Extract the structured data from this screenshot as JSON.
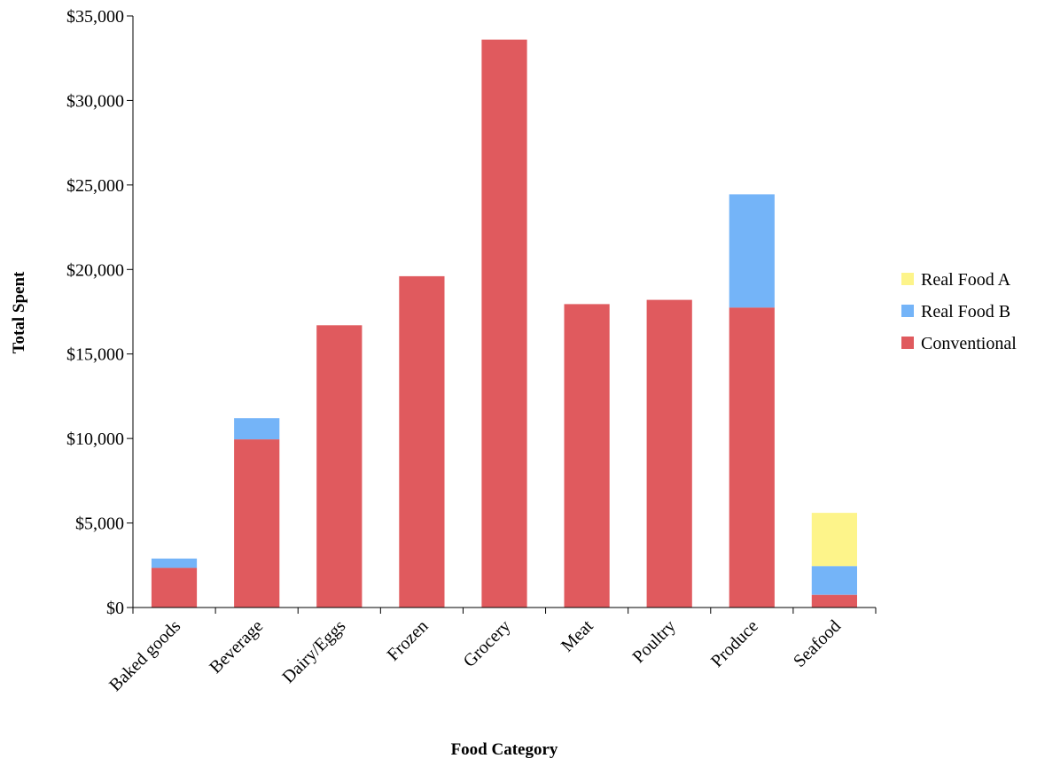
{
  "chart_data": {
    "type": "bar",
    "stacked": true,
    "categories": [
      "Baked goods",
      "Beverage",
      "Dairy/Eggs",
      "Frozen",
      "Grocery",
      "Meat",
      "Poultry",
      "Produce",
      "Seafood"
    ],
    "series": [
      {
        "name": "Conventional",
        "color": "#e05a5e",
        "values": [
          2350,
          9950,
          16700,
          19600,
          33600,
          17950,
          18200,
          17750,
          750
        ]
      },
      {
        "name": "Real Food B",
        "color": "#74b4f8",
        "values": [
          550,
          1250,
          0,
          0,
          0,
          0,
          0,
          6700,
          1700
        ]
      },
      {
        "name": "Real Food A",
        "color": "#fdf48a",
        "values": [
          0,
          0,
          0,
          0,
          0,
          0,
          0,
          0,
          3150
        ]
      }
    ],
    "legend_order": [
      "Real Food A",
      "Real Food B",
      "Conventional"
    ],
    "legend_position": "right",
    "xlabel": "Food Category",
    "ylabel": "Total Spent",
    "ylim": [
      0,
      35000
    ],
    "yticks": [
      0,
      5000,
      10000,
      15000,
      20000,
      25000,
      30000,
      35000
    ],
    "ytick_labels": [
      "$0",
      "$5,000",
      "$10,000",
      "$15,000",
      "$20,000",
      "$25,000",
      "$30,000",
      "$35,000"
    ],
    "grid": false
  }
}
